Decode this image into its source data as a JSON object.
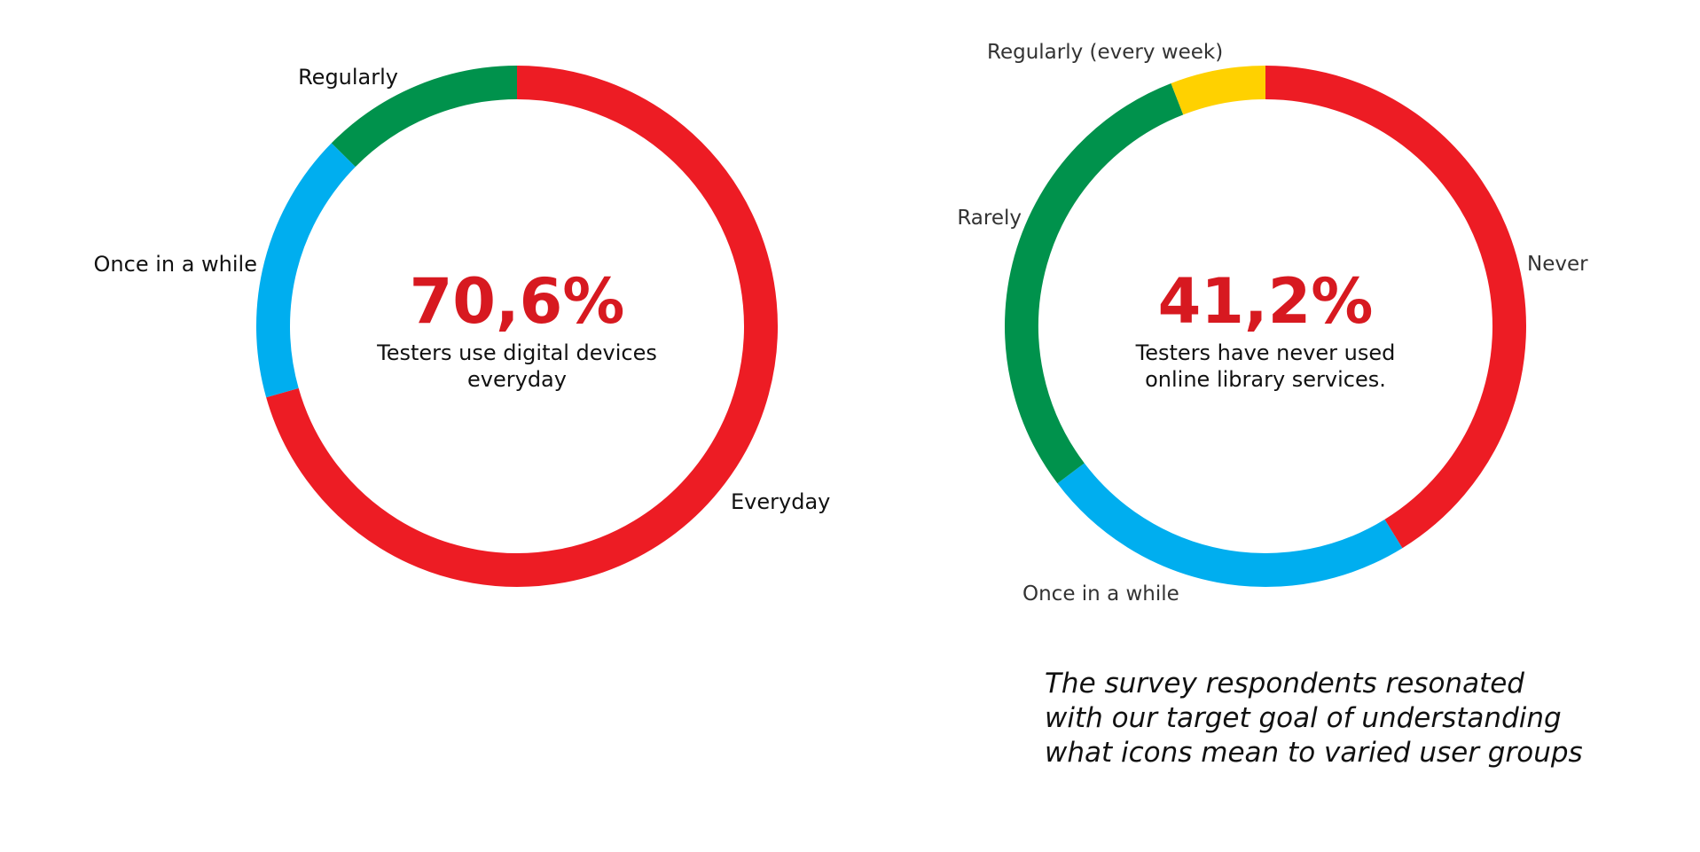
{
  "colors": {
    "red": "#ED1C24",
    "green": "#00924C",
    "blue": "#00AEEF",
    "yellow": "#FFD100",
    "highlight": "#D71920"
  },
  "chart_data": [
    {
      "type": "donut",
      "slices": [
        {
          "label": "Everyday",
          "value": 70.6,
          "color": "#ED1C24"
        },
        {
          "label": "Once in a while",
          "value": 16.8,
          "color": "#00AEEF"
        },
        {
          "label": "Regularly",
          "value": 12.6,
          "color": "#00924C"
        }
      ],
      "center_value": "70,6%",
      "center_text": [
        "Testers use digital devices",
        "everyday"
      ]
    },
    {
      "type": "donut",
      "slices": [
        {
          "label": "Never",
          "value": 41.2,
          "color": "#ED1C24"
        },
        {
          "label": "Once in a while",
          "value": 23.5,
          "color": "#00AEEF"
        },
        {
          "label": "Rarely",
          "value": 29.4,
          "color": "#00924C"
        },
        {
          "label": "Regularly (every week)",
          "value": 5.9,
          "color": "#FFD100"
        }
      ],
      "center_value": "41,2%",
      "center_text": [
        "Testers have never used",
        "online library services."
      ]
    }
  ],
  "caption": [
    "The survey respondents resonated",
    "with our target goal of understanding",
    "what icons mean to varied user groups"
  ]
}
